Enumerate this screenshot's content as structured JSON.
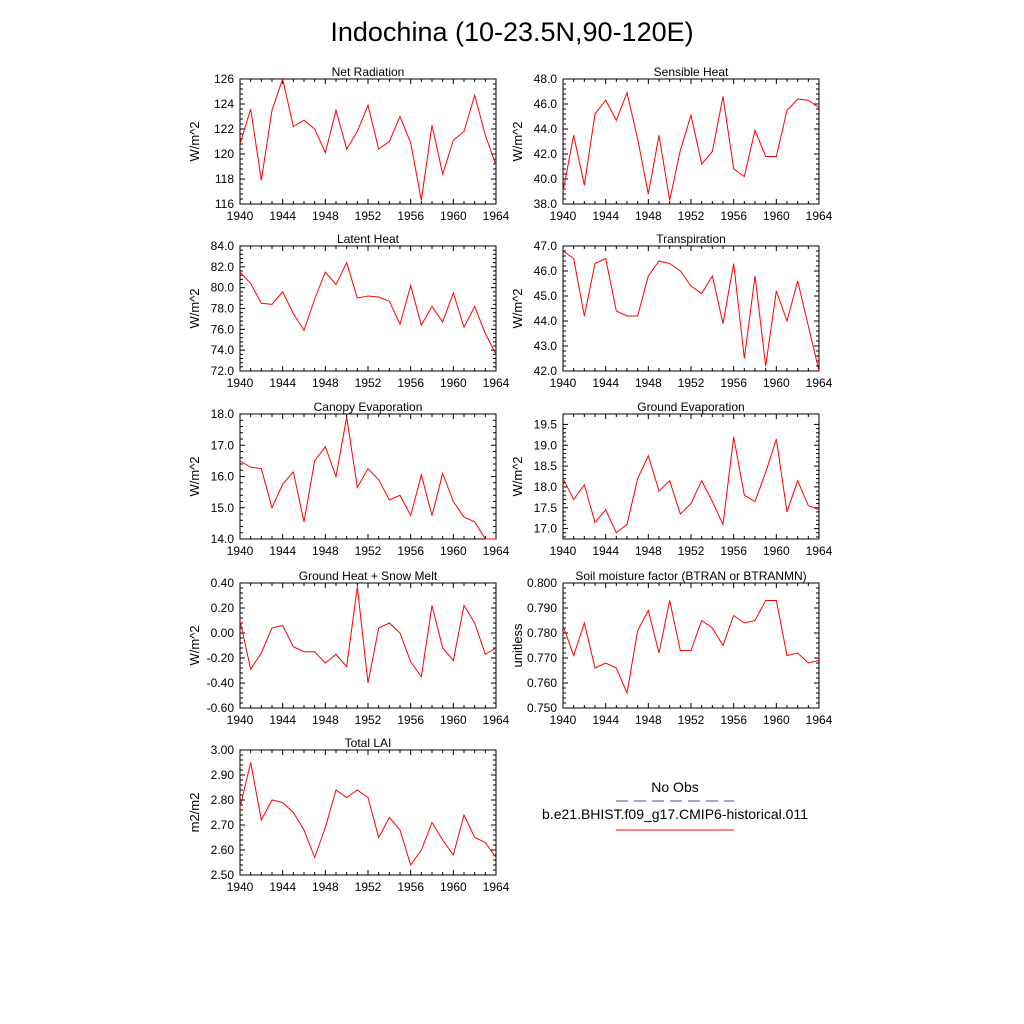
{
  "figure": {
    "title": "Indochina (10-23.5N,90-120E)",
    "line_color": "#ff0000",
    "obs_color": "#4a4a9a"
  },
  "legend": {
    "obs_label": "No Obs",
    "model_label": "b.e21.BHIST.f09_g17.CMIP6-historical.011"
  },
  "chart_data": [
    {
      "id": "net_rad",
      "type": "line",
      "title": "Net Radiation",
      "ylabel": "W/m^2",
      "xlim": [
        1940,
        1964
      ],
      "ylim": [
        116,
        126
      ],
      "yticks": [
        116,
        118,
        120,
        122,
        124,
        126
      ],
      "ytick_labels": [
        "116",
        "118",
        "120",
        "122",
        "124",
        "126"
      ],
      "xticks": [
        1940,
        1944,
        1948,
        1952,
        1956,
        1960,
        1964
      ],
      "series": [
        {
          "x_start": 1940,
          "values": [
            120.8,
            123.6,
            117.9,
            123.5,
            126.0,
            122.2,
            122.7,
            122.0,
            120.1,
            123.5,
            120.4,
            121.8,
            123.9,
            120.4,
            121.0,
            123.0,
            120.9,
            116.3,
            122.3,
            118.4,
            121.1,
            121.8,
            124.7,
            121.5,
            119.1
          ]
        }
      ]
    },
    {
      "id": "sens_heat",
      "type": "line",
      "title": "Sensible Heat",
      "ylabel": "W/m^2",
      "xlim": [
        1940,
        1964
      ],
      "ylim": [
        38,
        48
      ],
      "yticks": [
        38,
        40,
        42,
        44,
        46,
        48
      ],
      "ytick_labels": [
        "38.0",
        "40.0",
        "42.0",
        "44.0",
        "46.0",
        "48.0"
      ],
      "xticks": [
        1940,
        1944,
        1948,
        1952,
        1956,
        1960,
        1964
      ],
      "series": [
        {
          "x_start": 1940,
          "values": [
            39.0,
            43.5,
            39.5,
            45.2,
            46.3,
            44.7,
            46.9,
            43.2,
            38.8,
            43.5,
            38.3,
            42.3,
            45.1,
            41.2,
            42.2,
            46.6,
            40.8,
            40.2,
            43.9,
            41.8,
            41.8,
            45.5,
            46.4,
            46.3,
            45.7
          ]
        }
      ]
    },
    {
      "id": "lat_heat",
      "type": "line",
      "title": "Latent Heat",
      "ylabel": "W/m^2",
      "xlim": [
        1940,
        1964
      ],
      "ylim": [
        72,
        84
      ],
      "yticks": [
        72,
        74,
        76,
        78,
        80,
        82,
        84
      ],
      "ytick_labels": [
        "72.0",
        "74.0",
        "76.0",
        "78.0",
        "80.0",
        "82.0",
        "84.0"
      ],
      "xticks": [
        1940,
        1944,
        1948,
        1952,
        1956,
        1960,
        1964
      ],
      "series": [
        {
          "x_start": 1940,
          "values": [
            81.5,
            80.4,
            78.5,
            78.4,
            79.6,
            77.5,
            75.9,
            78.9,
            81.5,
            80.3,
            82.4,
            79.0,
            79.2,
            79.1,
            78.7,
            76.5,
            80.2,
            76.4,
            78.2,
            76.7,
            79.5,
            76.2,
            78.2,
            75.6,
            73.6
          ]
        }
      ]
    },
    {
      "id": "transp",
      "type": "line",
      "title": "Transpiration",
      "ylabel": "W/m^2",
      "xlim": [
        1940,
        1964
      ],
      "ylim": [
        42,
        47
      ],
      "yticks": [
        42,
        43,
        44,
        45,
        46,
        47
      ],
      "ytick_labels": [
        "42.0",
        "43.0",
        "44.0",
        "45.0",
        "46.0",
        "47.0"
      ],
      "xticks": [
        1940,
        1944,
        1948,
        1952,
        1956,
        1960,
        1964
      ],
      "series": [
        {
          "x_start": 1940,
          "values": [
            46.8,
            46.5,
            44.2,
            46.3,
            46.5,
            44.4,
            44.2,
            44.2,
            45.8,
            46.4,
            46.3,
            46.0,
            45.4,
            45.1,
            45.8,
            43.9,
            46.3,
            42.5,
            45.8,
            42.2,
            45.2,
            44.0,
            45.6,
            43.8,
            42.0
          ]
        }
      ]
    },
    {
      "id": "can_evap",
      "type": "line",
      "title": "Canopy Evaporation",
      "ylabel": "W/m^2",
      "xlim": [
        1940,
        1964
      ],
      "ylim": [
        14,
        18
      ],
      "yticks": [
        14,
        15,
        16,
        17,
        18
      ],
      "ytick_labels": [
        "14.0",
        "15.0",
        "16.0",
        "17.0",
        "18.0"
      ],
      "xticks": [
        1940,
        1944,
        1948,
        1952,
        1956,
        1960,
        1964
      ],
      "series": [
        {
          "x_start": 1940,
          "values": [
            16.5,
            16.3,
            16.25,
            15.0,
            15.75,
            16.15,
            14.55,
            16.5,
            16.95,
            16.0,
            17.9,
            15.65,
            16.25,
            15.9,
            15.25,
            15.4,
            14.75,
            16.05,
            14.75,
            16.1,
            15.2,
            14.7,
            14.55,
            14.0,
            14.0
          ]
        }
      ]
    },
    {
      "id": "gnd_evap",
      "type": "line",
      "title": "Ground Evaporation",
      "ylabel": "W/m^2",
      "xlim": [
        1940,
        1964
      ],
      "ylim": [
        16.75,
        19.75
      ],
      "yticks": [
        17.0,
        17.5,
        18.0,
        18.5,
        19.0,
        19.5
      ],
      "ytick_labels": [
        "17.0",
        "17.5",
        "18.0",
        "18.5",
        "19.0",
        "19.5"
      ],
      "xticks": [
        1940,
        1944,
        1948,
        1952,
        1956,
        1960,
        1964
      ],
      "series": [
        {
          "x_start": 1940,
          "values": [
            18.2,
            17.7,
            18.05,
            17.15,
            17.45,
            16.9,
            17.1,
            18.2,
            18.75,
            17.9,
            18.15,
            17.35,
            17.6,
            18.15,
            17.65,
            17.1,
            19.2,
            17.8,
            17.65,
            18.35,
            19.15,
            17.4,
            18.15,
            17.55,
            17.45
          ]
        }
      ]
    },
    {
      "id": "gnd_heat",
      "type": "line",
      "title": "Ground Heat + Snow Melt",
      "ylabel": "W/m^2",
      "xlim": [
        1940,
        1964
      ],
      "ylim": [
        -0.6,
        0.4
      ],
      "yticks": [
        -0.6,
        -0.4,
        -0.2,
        0.0,
        0.2,
        0.4
      ],
      "ytick_labels": [
        "-0.60",
        "-0.40",
        "-0.20",
        "0.00",
        "0.20",
        "0.40"
      ],
      "xticks": [
        1940,
        1944,
        1948,
        1952,
        1956,
        1960,
        1964
      ],
      "series": [
        {
          "x_start": 1940,
          "values": [
            0.1,
            -0.29,
            -0.16,
            0.04,
            0.06,
            -0.11,
            -0.15,
            -0.15,
            -0.24,
            -0.17,
            -0.27,
            0.37,
            -0.4,
            0.04,
            0.08,
            0.0,
            -0.23,
            -0.35,
            0.22,
            -0.12,
            -0.22,
            0.22,
            0.08,
            -0.17,
            -0.12
          ]
        }
      ]
    },
    {
      "id": "btran",
      "type": "line",
      "title": "Soil moisture factor (BTRAN or BTRANMN)",
      "ylabel": "unitless",
      "xlim": [
        1940,
        1964
      ],
      "ylim": [
        0.75,
        0.8
      ],
      "yticks": [
        0.75,
        0.76,
        0.77,
        0.78,
        0.79,
        0.8
      ],
      "ytick_labels": [
        "0.750",
        "0.760",
        "0.770",
        "0.780",
        "0.790",
        "0.800"
      ],
      "xticks": [
        1940,
        1944,
        1948,
        1952,
        1956,
        1960,
        1964
      ],
      "series": [
        {
          "x_start": 1940,
          "values": [
            0.783,
            0.771,
            0.784,
            0.766,
            0.768,
            0.766,
            0.756,
            0.781,
            0.789,
            0.772,
            0.793,
            0.773,
            0.773,
            0.785,
            0.782,
            0.775,
            0.787,
            0.784,
            0.785,
            0.793,
            0.793,
            0.771,
            0.772,
            0.768,
            0.769
          ]
        }
      ]
    },
    {
      "id": "lai",
      "type": "line",
      "title": "Total LAI",
      "ylabel": "m2/m2",
      "xlim": [
        1940,
        1964
      ],
      "ylim": [
        2.5,
        3.0
      ],
      "yticks": [
        2.5,
        2.6,
        2.7,
        2.8,
        2.9,
        3.0
      ],
      "ytick_labels": [
        "2.50",
        "2.60",
        "2.70",
        "2.80",
        "2.90",
        "3.00"
      ],
      "xticks": [
        1940,
        1944,
        1948,
        1952,
        1956,
        1960,
        1964
      ],
      "series": [
        {
          "x_start": 1940,
          "values": [
            2.77,
            2.95,
            2.72,
            2.8,
            2.79,
            2.75,
            2.68,
            2.57,
            2.69,
            2.84,
            2.81,
            2.84,
            2.81,
            2.65,
            2.73,
            2.68,
            2.54,
            2.6,
            2.71,
            2.64,
            2.58,
            2.74,
            2.65,
            2.63,
            2.57
          ]
        }
      ]
    }
  ]
}
